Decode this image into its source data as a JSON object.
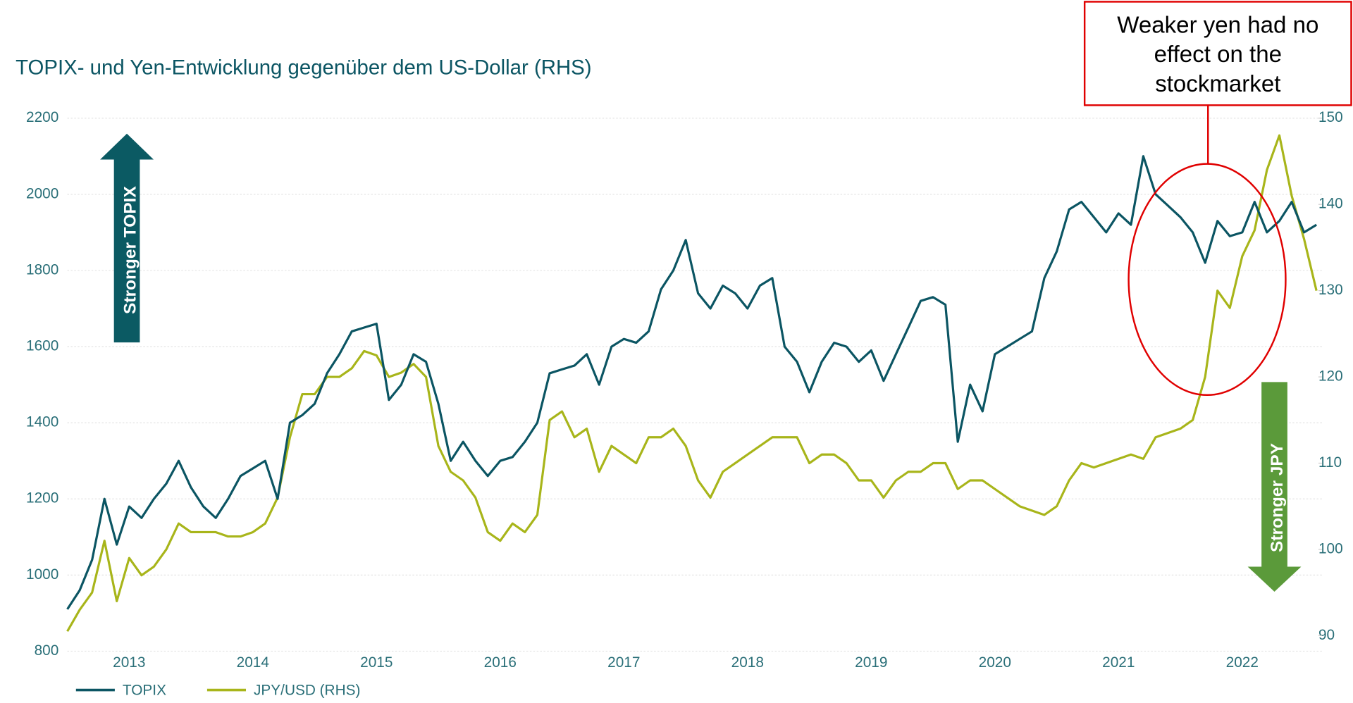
{
  "chart_data": {
    "type": "line",
    "title": "TOPIX- und Yen-Entwicklung gegenüber dem US-Dollar (RHS)",
    "x": [
      2012.5,
      2012.6,
      2012.7,
      2012.8,
      2012.9,
      2013.0,
      2013.1,
      2013.2,
      2013.3,
      2013.4,
      2013.5,
      2013.6,
      2013.7,
      2013.8,
      2013.9,
      2014.0,
      2014.1,
      2014.2,
      2014.3,
      2014.4,
      2014.5,
      2014.6,
      2014.7,
      2014.8,
      2014.9,
      2015.0,
      2015.1,
      2015.2,
      2015.3,
      2015.4,
      2015.5,
      2015.6,
      2015.7,
      2015.8,
      2015.9,
      2016.0,
      2016.1,
      2016.2,
      2016.3,
      2016.4,
      2016.5,
      2016.6,
      2016.7,
      2016.8,
      2016.9,
      2017.0,
      2017.1,
      2017.2,
      2017.3,
      2017.4,
      2017.5,
      2017.6,
      2017.7,
      2017.8,
      2017.9,
      2018.0,
      2018.1,
      2018.2,
      2018.3,
      2018.4,
      2018.5,
      2018.6,
      2018.7,
      2018.8,
      2018.9,
      2019.0,
      2019.1,
      2019.2,
      2019.3,
      2019.4,
      2019.5,
      2019.6,
      2019.7,
      2019.8,
      2019.9,
      2020.0,
      2020.1,
      2020.2,
      2020.3,
      2020.4,
      2020.5,
      2020.6,
      2020.7,
      2020.8,
      2020.9,
      2021.0,
      2021.1,
      2021.2,
      2021.3,
      2021.4,
      2021.5,
      2021.6,
      2021.7,
      2021.8,
      2021.9,
      2022.0,
      2022.1,
      2022.2,
      2022.3,
      2022.4,
      2022.5,
      2022.6
    ],
    "series": [
      {
        "name": "TOPIX",
        "color": "#0b5563",
        "axis": "y",
        "values": [
          910,
          960,
          1040,
          1200,
          1080,
          1180,
          1150,
          1200,
          1240,
          1300,
          1230,
          1180,
          1150,
          1200,
          1260,
          1280,
          1300,
          1200,
          1400,
          1420,
          1450,
          1530,
          1580,
          1640,
          1650,
          1660,
          1460,
          1500,
          1580,
          1560,
          1450,
          1300,
          1350,
          1300,
          1260,
          1300,
          1310,
          1350,
          1400,
          1530,
          1540,
          1550,
          1580,
          1500,
          1600,
          1620,
          1610,
          1640,
          1750,
          1800,
          1880,
          1740,
          1700,
          1760,
          1740,
          1700,
          1760,
          1780,
          1600,
          1560,
          1480,
          1560,
          1610,
          1600,
          1560,
          1590,
          1510,
          1580,
          1650,
          1720,
          1730,
          1710,
          1350,
          1500,
          1430,
          1580,
          1600,
          1620,
          1640,
          1780,
          1850,
          1960,
          1980,
          1940,
          1900,
          1950,
          1920,
          2100,
          2000,
          1970,
          1940,
          1900,
          1820,
          1930,
          1890,
          1900,
          1980,
          1900,
          1930,
          1980,
          1900,
          1920
        ]
      },
      {
        "name": "JPY/USD (RHS)",
        "color": "#a8b51a",
        "axis": "y2",
        "values": [
          90.5,
          93,
          95,
          101,
          94,
          99,
          97,
          98,
          100,
          103,
          102,
          102,
          102,
          101.5,
          101.5,
          102,
          103,
          106,
          113,
          118,
          118,
          120,
          120,
          121,
          123,
          122.5,
          120,
          120.5,
          121.5,
          120,
          112,
          109,
          108,
          106,
          102,
          101,
          103,
          102,
          104,
          115,
          116,
          113,
          114,
          109,
          112,
          111,
          110,
          113,
          113,
          114,
          112,
          108,
          106,
          109,
          110,
          111,
          112,
          113,
          113,
          113,
          110,
          111,
          111,
          110,
          108,
          108,
          106,
          108,
          109,
          109,
          110,
          110,
          107,
          108,
          108,
          107,
          106,
          105,
          104.5,
          104,
          105,
          108,
          110,
          109.5,
          110,
          110.5,
          111,
          110.5,
          113,
          113.5,
          114,
          115,
          120,
          130,
          128,
          134,
          137,
          144,
          148,
          141,
          136,
          130
        ]
      }
    ],
    "xlim": [
      2012.5,
      2022.65
    ],
    "xticks": [
      2013,
      2014,
      2015,
      2016,
      2017,
      2018,
      2019,
      2020,
      2021,
      2022
    ],
    "ylim": [
      800,
      2200
    ],
    "yticks": [
      800,
      1000,
      1200,
      1400,
      1600,
      1800,
      2000,
      2200
    ],
    "y2lim": [
      88.2,
      150
    ],
    "y2ticks": [
      90,
      100,
      110,
      120,
      130,
      140,
      150
    ],
    "grid": true,
    "annotations": {
      "up_arrow": "Stronger TOPIX",
      "down_arrow": "Stronger JPY",
      "box": "Weaker yen had no effect on the stockmarket"
    }
  }
}
